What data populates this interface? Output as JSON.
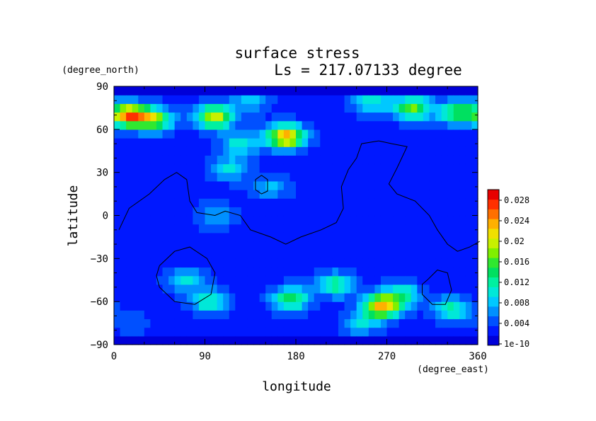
{
  "chart_data": {
    "type": "heatmap",
    "title": "surface stress",
    "subtitle": "Ls = 217.07133 degree",
    "xlabel": "longitude",
    "ylabel": "latitude",
    "x_unit": "(degree_east)",
    "y_unit": "(degree_north)",
    "xlim": [
      0,
      360
    ],
    "ylim": [
      -90,
      90
    ],
    "x_ticks": [
      0,
      90,
      180,
      270,
      360
    ],
    "y_ticks": [
      90,
      60,
      30,
      0,
      -30,
      -60,
      -90
    ],
    "colorbar": {
      "labels": [
        "0.028",
        "0.024",
        "0.02",
        "0.016",
        "0.012",
        "0.008",
        "0.004",
        "1e-10"
      ],
      "min": 1e-10,
      "max": 0.03,
      "colors": [
        "#0000d8",
        "#0018ff",
        "#0050ff",
        "#0090ff",
        "#00c8ff",
        "#00e8d8",
        "#00f0a0",
        "#00e060",
        "#30e830",
        "#80f000",
        "#c8f000",
        "#f0e000",
        "#ffb000",
        "#ff7000",
        "#ff3000",
        "#e80000"
      ]
    },
    "base_value": 0.003,
    "hotspots": [
      {
        "lon": 15,
        "lat": 70,
        "value": 0.025
      },
      {
        "lon": 40,
        "lat": 67,
        "value": 0.018
      },
      {
        "lon": 100,
        "lat": 69,
        "value": 0.02
      },
      {
        "lon": 170,
        "lat": 55,
        "value": 0.024
      },
      {
        "lon": 295,
        "lat": 75,
        "value": 0.017
      },
      {
        "lon": 340,
        "lat": 72,
        "value": 0.016
      },
      {
        "lon": 255,
        "lat": 80,
        "value": 0.011
      },
      {
        "lon": 135,
        "lat": 80,
        "value": 0.009
      },
      {
        "lon": 125,
        "lat": 50,
        "value": 0.011
      },
      {
        "lon": 115,
        "lat": 33,
        "value": 0.01
      },
      {
        "lon": 155,
        "lat": 20,
        "value": 0.008
      },
      {
        "lon": 100,
        "lat": 0,
        "value": 0.008
      },
      {
        "lon": 70,
        "lat": -45,
        "value": 0.01
      },
      {
        "lon": 95,
        "lat": -60,
        "value": 0.012
      },
      {
        "lon": 175,
        "lat": -58,
        "value": 0.015
      },
      {
        "lon": 220,
        "lat": -48,
        "value": 0.013
      },
      {
        "lon": 265,
        "lat": -63,
        "value": 0.023
      },
      {
        "lon": 285,
        "lat": -55,
        "value": 0.012
      },
      {
        "lon": 335,
        "lat": -65,
        "value": 0.012
      },
      {
        "lon": 245,
        "lat": -75,
        "value": 0.009
      },
      {
        "lon": 20,
        "lat": -75,
        "value": 0.005
      }
    ],
    "contours": [
      [
        [
          5,
          -10
        ],
        [
          15,
          5
        ],
        [
          35,
          15
        ],
        [
          50,
          25
        ],
        [
          62,
          30
        ],
        [
          72,
          25
        ],
        [
          75,
          10
        ],
        [
          82,
          2
        ],
        [
          100,
          0
        ],
        [
          110,
          3
        ],
        [
          125,
          0
        ],
        [
          135,
          -10
        ],
        [
          155,
          -15
        ],
        [
          170,
          -20
        ],
        [
          185,
          -15
        ],
        [
          205,
          -10
        ],
        [
          220,
          -5
        ],
        [
          227,
          5
        ],
        [
          225,
          20
        ],
        [
          232,
          32
        ],
        [
          240,
          40
        ],
        [
          245,
          50
        ],
        [
          262,
          52
        ],
        [
          275,
          50
        ],
        [
          290,
          48
        ],
        [
          280,
          33
        ],
        [
          272,
          22
        ],
        [
          280,
          15
        ],
        [
          298,
          10
        ],
        [
          312,
          0
        ],
        [
          320,
          -10
        ],
        [
          330,
          -20
        ],
        [
          340,
          -25
        ],
        [
          352,
          -22
        ],
        [
          362,
          -18
        ]
      ],
      [
        [
          140,
          25
        ],
        [
          146,
          28
        ],
        [
          152,
          25
        ],
        [
          152,
          17
        ],
        [
          146,
          15
        ],
        [
          140,
          18
        ],
        [
          140,
          25
        ]
      ],
      [
        [
          45,
          -35
        ],
        [
          60,
          -25
        ],
        [
          75,
          -22
        ],
        [
          92,
          -30
        ],
        [
          100,
          -40
        ],
        [
          96,
          -55
        ],
        [
          80,
          -62
        ],
        [
          60,
          -60
        ],
        [
          45,
          -50
        ],
        [
          42,
          -42
        ],
        [
          45,
          -35
        ]
      ],
      [
        [
          310,
          -45
        ],
        [
          320,
          -38
        ],
        [
          330,
          -40
        ],
        [
          334,
          -52
        ],
        [
          328,
          -62
        ],
        [
          315,
          -62
        ],
        [
          305,
          -55
        ],
        [
          305,
          -48
        ],
        [
          310,
          -45
        ]
      ]
    ]
  }
}
